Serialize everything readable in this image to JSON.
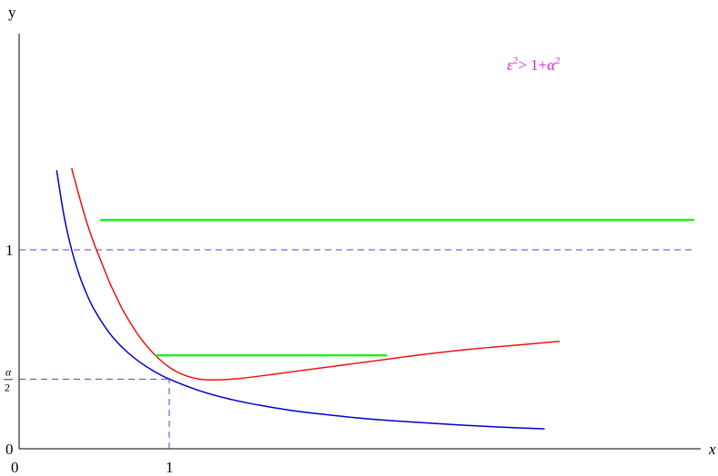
{
  "chart_data": {
    "type": "line",
    "title": "",
    "xlabel": "x",
    "ylabel": "y",
    "xlim": [
      0,
      3.6
    ],
    "ylim": [
      0,
      1.35
    ],
    "grid": false,
    "x_ticks": [
      {
        "value": 0,
        "label": "0"
      },
      {
        "value": 1,
        "label": "1"
      }
    ],
    "y_ticks": [
      {
        "value": 0,
        "label": "0"
      },
      {
        "value": 0.35,
        "label_num": "α",
        "label_den": "2"
      },
      {
        "value": 1,
        "label": "1"
      }
    ],
    "annotation": {
      "eps": "ε",
      "sq": "2",
      "mid": "> 1+",
      "alpha": "α",
      "sq2": "2",
      "color": "#e020e0"
    },
    "series": [
      {
        "color": "#0000cc",
        "x": [
          0.25,
          0.3,
          0.35,
          0.4,
          0.45,
          0.5,
          0.6,
          0.7,
          0.8,
          0.9,
          1.0,
          1.2,
          1.4,
          1.6,
          1.8,
          2.0,
          2.3,
          2.6,
          2.9,
          3.2,
          3.5
        ],
        "y": [
          1.4,
          1.167,
          1.0,
          0.875,
          0.778,
          0.7,
          0.583,
          0.5,
          0.4375,
          0.389,
          0.35,
          0.292,
          0.25,
          0.219,
          0.194,
          0.175,
          0.152,
          0.135,
          0.121,
          0.109,
          0.1
        ]
      },
      {
        "color": "#ee1111",
        "x": [
          0.35,
          0.4,
          0.45,
          0.5,
          0.55,
          0.6,
          0.65,
          0.7,
          0.8,
          0.9,
          1.0,
          1.1,
          1.2,
          1.3,
          1.45,
          1.6,
          1.8,
          2.0,
          2.2,
          2.45,
          2.7,
          3.0,
          3.3,
          3.6
        ],
        "y": [
          1.41,
          1.27,
          1.14,
          1.03,
          0.935,
          0.84,
          0.76,
          0.685,
          0.565,
          0.475,
          0.41,
          0.37,
          0.35,
          0.346,
          0.352,
          0.365,
          0.385,
          0.405,
          0.425,
          0.45,
          0.475,
          0.5,
          0.52,
          0.54
        ]
      }
    ],
    "horizontal_segments": [
      {
        "y": 1.15,
        "x_start": 0.54,
        "x_end": 3.6,
        "color": "#22ee22"
      },
      {
        "y": 0.47,
        "x_start": 0.905,
        "x_end": 2.45,
        "color": "#22ee22"
      }
    ],
    "reference_lines": [
      {
        "orientation": "horizontal",
        "y": 1.0,
        "x_start": 0,
        "x_end": 3.6,
        "color": "#4444cc",
        "dashed": true
      },
      {
        "orientation": "horizontal",
        "y": 0.35,
        "x_start": 0,
        "x_end": 1.0,
        "color": "#4444cc",
        "dashed": true
      },
      {
        "orientation": "vertical",
        "x": 1.0,
        "y_start": 0,
        "y_end": 0.35,
        "color": "#4444cc",
        "dashed": true
      }
    ]
  }
}
